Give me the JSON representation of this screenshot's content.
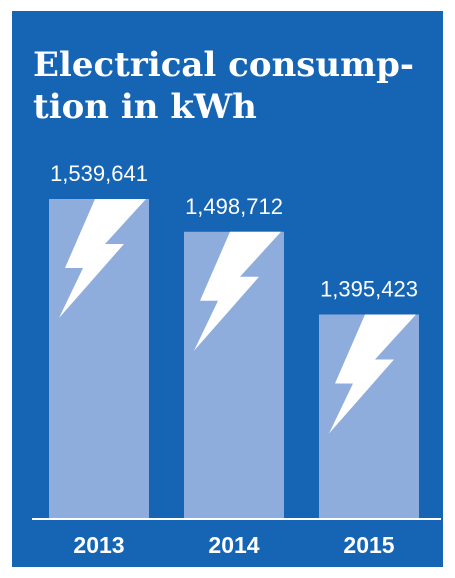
{
  "chart_data": {
    "type": "bar",
    "title": "Electrical consump-\ntion in kWh",
    "categories": [
      "2013",
      "2014",
      "2015"
    ],
    "values": [
      1539641,
      1498712,
      1395423
    ],
    "value_labels": [
      "1,539,641",
      "1,498,712",
      "1,395,423"
    ],
    "xlabel": "",
    "ylabel": "",
    "ylim": [
      1140000,
      1539641
    ],
    "grid": false,
    "legend": "none",
    "bar_icon": "lightning-bolt-icon",
    "colors": {
      "background": "#1565b4",
      "bar": "#8eacdc",
      "icon": "#ffffff",
      "text": "#ffffff",
      "axis": "#ffffff"
    }
  }
}
